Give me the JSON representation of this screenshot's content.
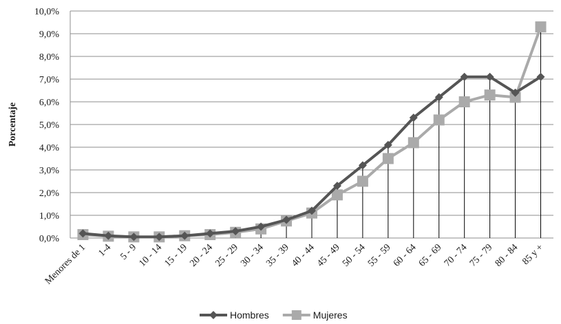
{
  "chart_data": {
    "type": "line",
    "ylabel": "Porcentaje",
    "xlabel": "",
    "ylim": [
      0,
      10
    ],
    "y_ticks": [
      "0,0%",
      "1,0%",
      "2,0%",
      "3,0%",
      "4,0%",
      "5,0%",
      "6,0%",
      "7,0%",
      "8,0%",
      "9,0%",
      "10,0%"
    ],
    "grid": "horizontal",
    "legend_position": "bottom",
    "categories": [
      "Menores de 1",
      "1-4",
      "5 - 9",
      "10 - 14",
      "15 - 19",
      "20 - 24",
      "25 - 29",
      "30 - 34",
      "35 - 39",
      "40 - 44",
      "45 - 49",
      "50 - 54",
      "55 - 59",
      "60 - 64",
      "65 - 69",
      "70 - 74",
      "75 - 79",
      "80 - 84",
      "85 y +"
    ],
    "series": [
      {
        "name": "Hombres",
        "color": "#555555",
        "marker": "diamond",
        "values": [
          0.2,
          0.1,
          0.05,
          0.05,
          0.1,
          0.2,
          0.3,
          0.5,
          0.8,
          1.2,
          2.3,
          3.2,
          4.1,
          5.3,
          6.2,
          7.1,
          7.1,
          6.4,
          7.1
        ]
      },
      {
        "name": "Mujeres",
        "color": "#aaaaaa",
        "marker": "square",
        "values": [
          0.15,
          0.08,
          0.05,
          0.05,
          0.1,
          0.15,
          0.25,
          0.4,
          0.75,
          1.1,
          1.9,
          2.5,
          3.5,
          4.2,
          5.2,
          6.0,
          6.3,
          6.2,
          9.3
        ]
      }
    ]
  }
}
